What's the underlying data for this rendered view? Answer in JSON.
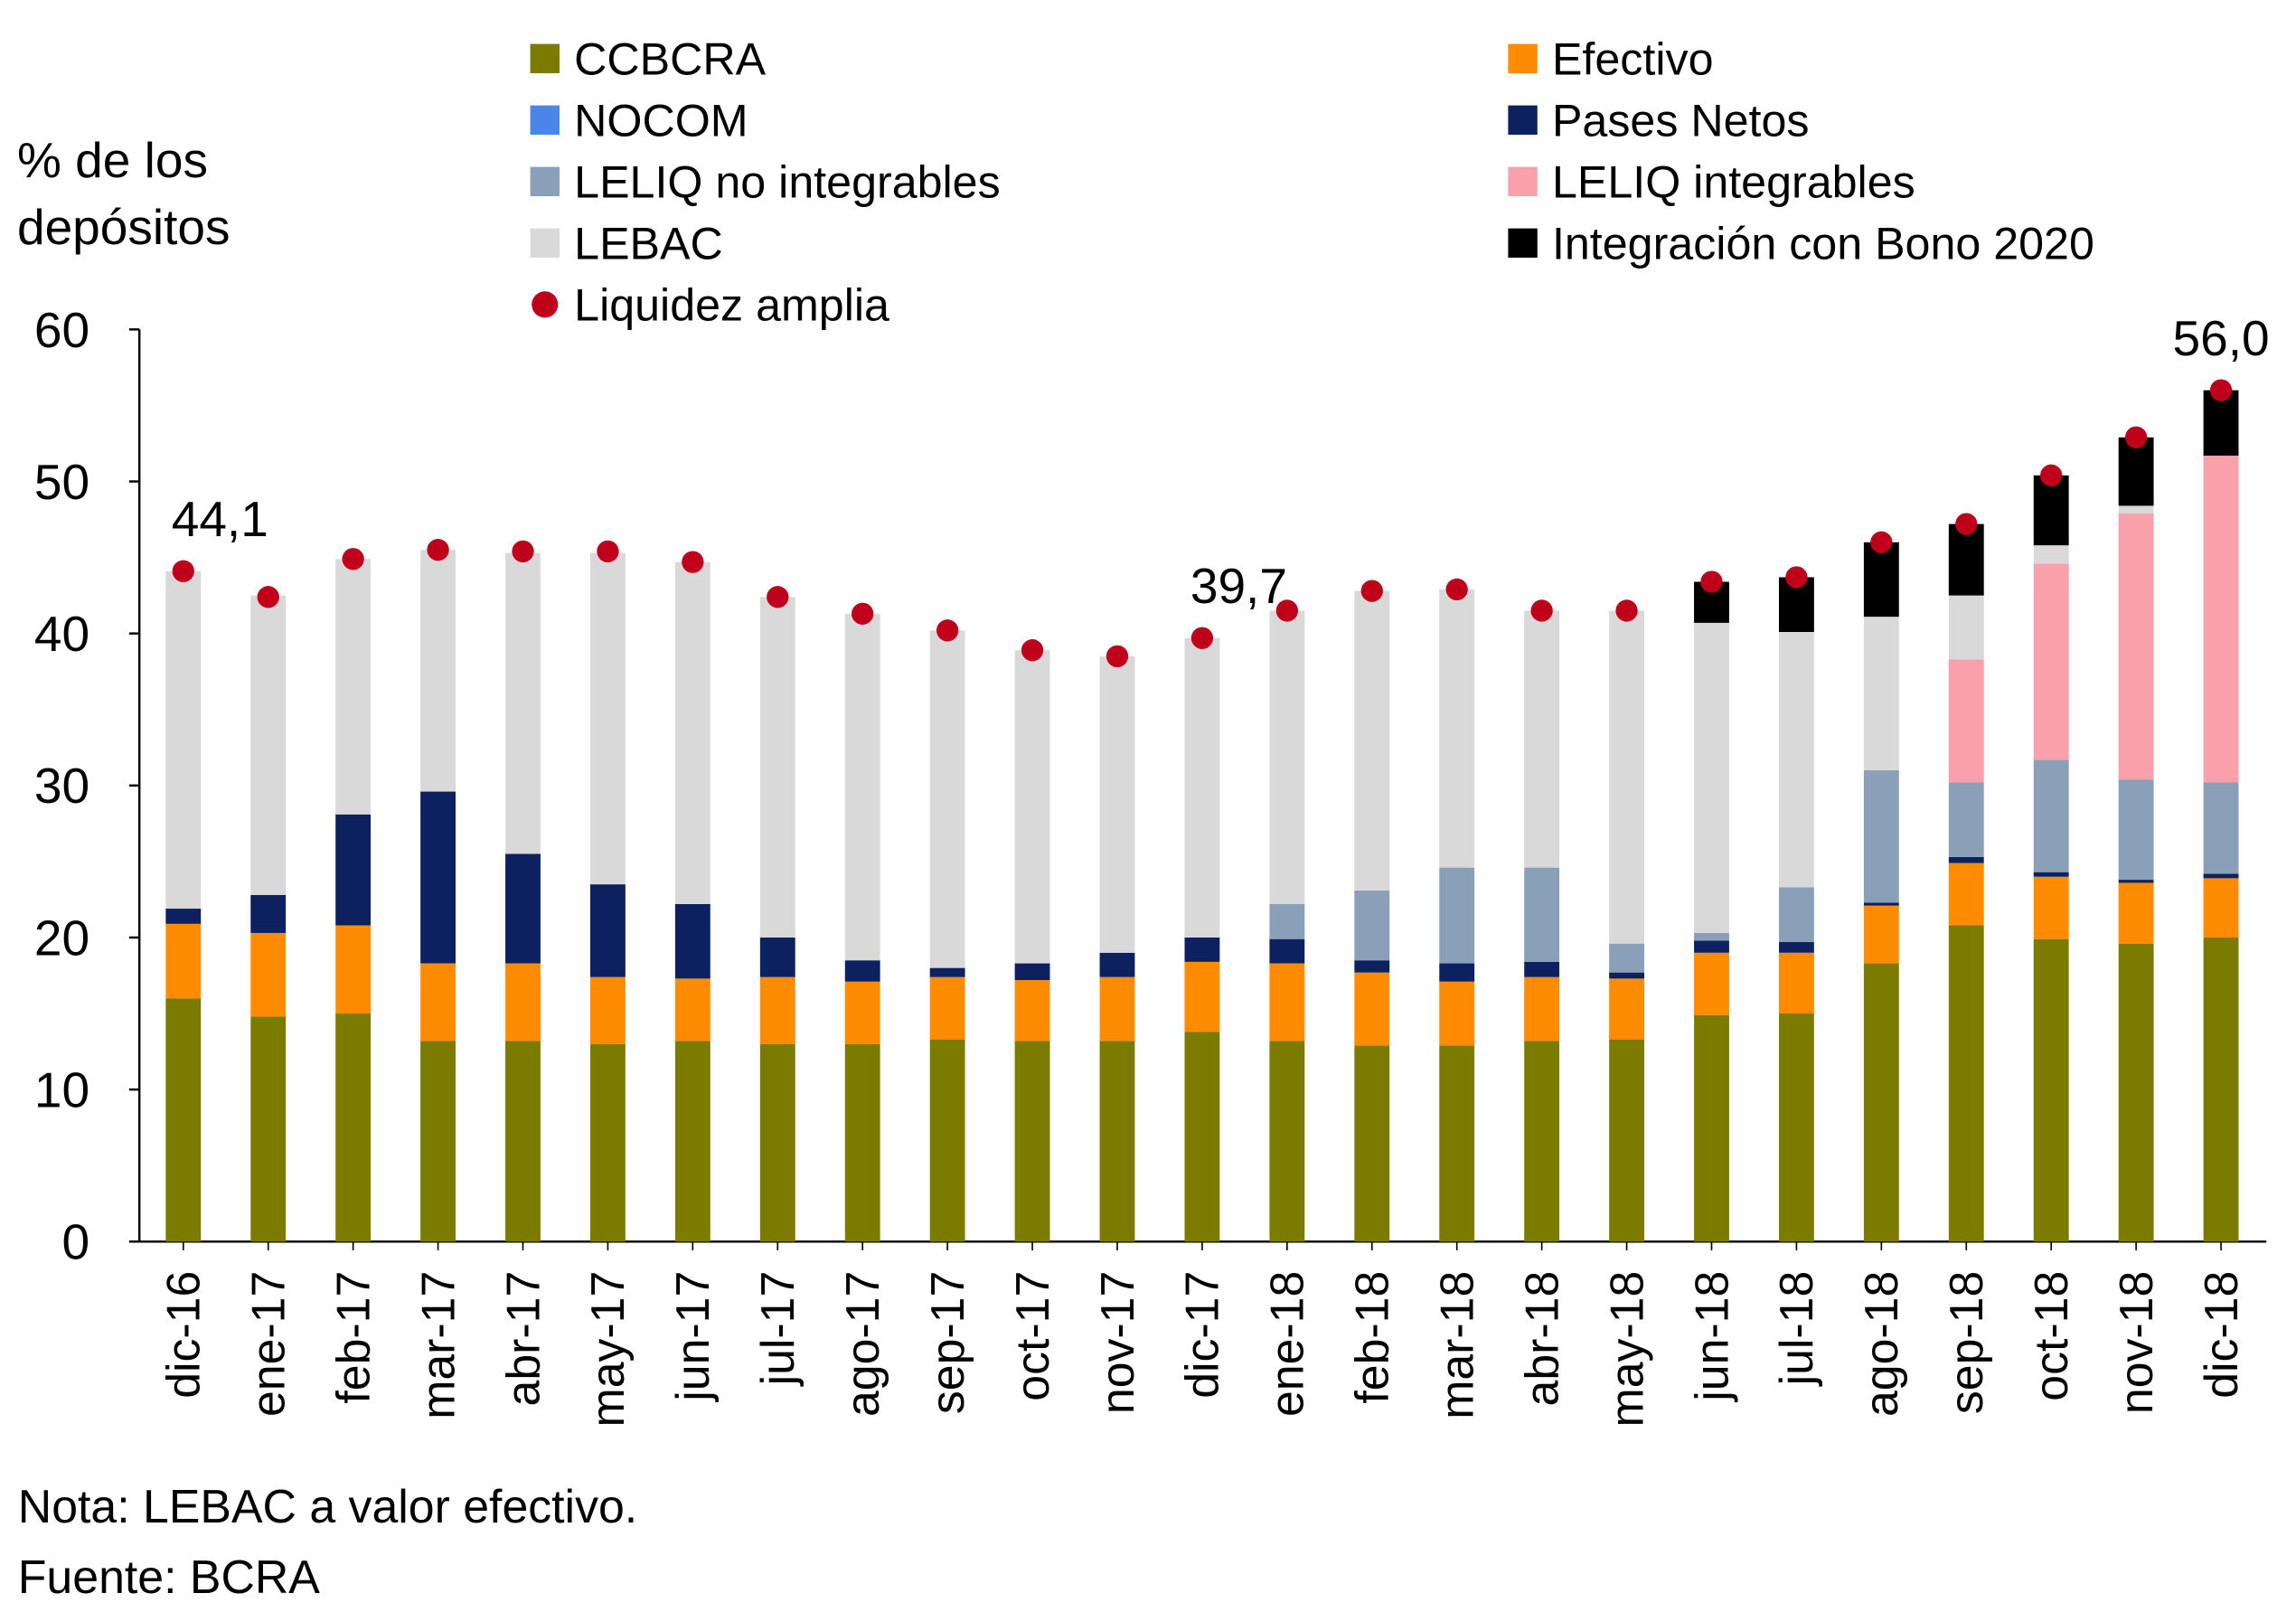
{
  "chart_data": {
    "type": "bar",
    "stacked": true,
    "y_axis_title": "% de los depósitos",
    "categories": [
      "dic-16",
      "ene-17",
      "feb-17",
      "mar-17",
      "abr-17",
      "may-17",
      "jun-17",
      "jul-17",
      "ago-17",
      "sep-17",
      "oct-17",
      "nov-17",
      "dic-17",
      "ene-18",
      "feb-18",
      "mar-18",
      "abr-18",
      "may-18",
      "jun-18",
      "jul-18",
      "ago-18",
      "sep-18",
      "oct-18",
      "nov-18",
      "dic-18"
    ],
    "series": [
      {
        "name": "CCBCRA",
        "color": "#7b7b00",
        "values": [
          16.0,
          14.8,
          15.0,
          13.2,
          13.2,
          13.0,
          13.2,
          13.0,
          13.0,
          13.3,
          13.2,
          13.2,
          13.8,
          13.2,
          12.9,
          12.9,
          13.2,
          13.3,
          14.9,
          15.0,
          18.3,
          20.8,
          19.9,
          19.6,
          20.0
        ]
      },
      {
        "name": "Efectivo",
        "color": "#ff8c00",
        "values": [
          4.9,
          5.5,
          5.8,
          5.1,
          5.1,
          4.4,
          4.1,
          4.4,
          4.1,
          4.1,
          4.0,
          4.2,
          4.6,
          5.1,
          4.8,
          4.2,
          4.2,
          4.0,
          4.1,
          4.0,
          3.8,
          4.1,
          4.1,
          4.0,
          3.9
        ]
      },
      {
        "name": "NOCOM",
        "color": "#4a86e8",
        "values": [
          0,
          0,
          0,
          0,
          0,
          0,
          0,
          0,
          0,
          0,
          0,
          0,
          0,
          0,
          0,
          0,
          0,
          0,
          0,
          0,
          0,
          0,
          0,
          0,
          0
        ]
      },
      {
        "name": "Pases Netos",
        "color": "#0d2160",
        "values": [
          1.0,
          2.5,
          7.3,
          11.3,
          7.2,
          6.1,
          4.9,
          2.6,
          1.4,
          0.6,
          1.1,
          1.6,
          1.6,
          1.6,
          0.8,
          1.2,
          1.0,
          0.4,
          0.8,
          0.7,
          0.2,
          0.4,
          0.3,
          0.2,
          0.3
        ]
      },
      {
        "name": "LELIQ no integrables",
        "color": "#8aa0b8",
        "values": [
          0,
          0,
          0,
          0,
          0,
          0,
          0,
          0,
          0,
          0,
          0,
          0,
          0,
          2.3,
          4.6,
          6.3,
          6.2,
          1.9,
          0.5,
          3.6,
          8.7,
          4.9,
          7.4,
          6.6,
          6.0
        ]
      },
      {
        "name": "LELIQ integrables",
        "color": "#f9a0aa",
        "values": [
          0,
          0,
          0,
          0,
          0,
          0,
          0,
          0,
          0,
          0,
          0,
          0,
          0,
          0,
          0,
          0,
          0,
          0,
          0,
          0,
          0,
          8.1,
          12.9,
          17.5,
          21.5
        ]
      },
      {
        "name": "LEBAC",
        "color": "#d9d9d9",
        "values": [
          22.2,
          19.7,
          16.8,
          15.9,
          19.8,
          21.8,
          22.5,
          22.4,
          22.8,
          22.2,
          20.6,
          19.5,
          19.7,
          19.3,
          19.7,
          18.3,
          16.9,
          21.9,
          20.4,
          16.8,
          10.1,
          4.2,
          1.2,
          0.5,
          0
        ]
      },
      {
        "name": "Integración con Bono 2020",
        "color": "#000000",
        "values": [
          0,
          0,
          0,
          0,
          0,
          0,
          0,
          0,
          0,
          0,
          0,
          0,
          0,
          0,
          0,
          0,
          0,
          0,
          2.7,
          3.6,
          4.9,
          4.7,
          4.6,
          4.5,
          4.3
        ]
      },
      {
        "name": "Liquidez amplia",
        "color": "#c0001a",
        "type": "scatter",
        "values": [
          44.1,
          42.4,
          44.9,
          45.5,
          45.4,
          45.4,
          44.7,
          42.4,
          41.3,
          40.2,
          38.9,
          38.5,
          39.7,
          41.5,
          42.8,
          42.9,
          41.5,
          41.5,
          43.4,
          43.7,
          46.0,
          47.2,
          50.4,
          52.9,
          56.0
        ],
        "value_labels": [
          "44,1",
          null,
          null,
          null,
          null,
          null,
          null,
          null,
          null,
          null,
          null,
          null,
          "39,7",
          null,
          null,
          null,
          null,
          null,
          null,
          null,
          null,
          null,
          null,
          null,
          "56,0"
        ]
      }
    ],
    "ylim": [
      0,
      60
    ],
    "yticks": [
      0,
      10,
      20,
      30,
      40,
      50,
      60
    ],
    "note": "Nota: LEBAC a valor efectivo.",
    "source": "Fuente: BCRA"
  }
}
